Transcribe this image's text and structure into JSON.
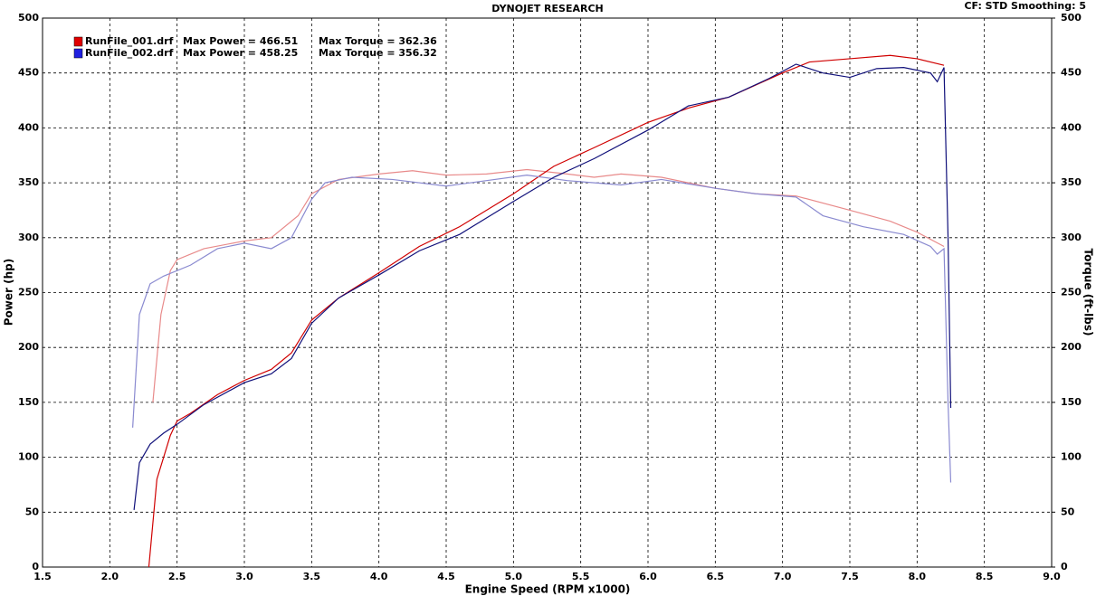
{
  "chart_data": {
    "type": "line",
    "title": "DYNOJET RESEARCH",
    "settings_text": "CF: STD  Smoothing: 5",
    "xlabel": "Engine Speed (RPM x1000)",
    "ylabel": "Power (hp)",
    "y2label": "Torque (ft-lbs)",
    "xlim": [
      1.5,
      9.0
    ],
    "xticks": [
      1.5,
      {
        "value": 2,
        "label": "2.0"
      },
      2.5,
      {
        "value": 3,
        "label": "3.0"
      },
      3.5,
      {
        "value": 4,
        "label": "4.0"
      },
      4.5,
      {
        "value": 5,
        "label": "5.0"
      },
      5.5,
      {
        "value": 6,
        "label": "6.0"
      },
      6.5,
      {
        "value": 7,
        "label": "7.0"
      },
      7.5,
      {
        "value": 8,
        "label": "8.0"
      },
      8.5,
      {
        "value": 9,
        "label": "9.0"
      }
    ],
    "ylim": [
      0,
      500
    ],
    "yticks": [
      0,
      50,
      100,
      150,
      200,
      250,
      300,
      350,
      400,
      450,
      500
    ],
    "y2lim": [
      0,
      500
    ],
    "y2ticks": [
      0,
      50,
      100,
      150,
      200,
      250,
      300,
      350,
      400,
      450,
      500
    ],
    "grid": true,
    "runs": [
      {
        "name": "RunFile_001.drf",
        "max_power": "Max Power = 466.51",
        "max_torque": "Max Torque = 362.36",
        "color": "#e00000",
        "power": {
          "color": "#d00000",
          "x": [
            2.29,
            2.35,
            2.45,
            2.5,
            2.6,
            2.8,
            3.0,
            3.2,
            3.35,
            3.5,
            3.7,
            4.0,
            4.3,
            4.6,
            5.0,
            5.3,
            5.6,
            6.0,
            6.3,
            6.6,
            7.0,
            7.2,
            7.5,
            7.8,
            8.0,
            8.2
          ],
          "values": [
            0,
            80,
            120,
            133,
            140,
            157,
            170,
            180,
            195,
            225,
            245,
            268,
            292,
            310,
            340,
            365,
            382,
            405,
            418,
            428,
            450,
            460,
            463,
            466,
            463,
            457
          ]
        },
        "torque": {
          "color": "#e88a8a",
          "axis": "y2",
          "x": [
            2.32,
            2.38,
            2.45,
            2.5,
            2.7,
            3.0,
            3.2,
            3.4,
            3.5,
            3.7,
            4.0,
            4.25,
            4.5,
            4.8,
            5.1,
            5.4,
            5.6,
            5.8,
            6.1,
            6.5,
            6.8,
            7.1,
            7.5,
            7.8,
            8.0,
            8.2
          ],
          "values": [
            150,
            230,
            270,
            280,
            290,
            297,
            300,
            320,
            340,
            353,
            358,
            361,
            357,
            358,
            362,
            358,
            355,
            358,
            355,
            345,
            340,
            338,
            325,
            315,
            305,
            292
          ]
        }
      },
      {
        "name": "RunFile_002.drf",
        "max_power": "Max Power = 458.25",
        "max_torque": "Max Torque = 356.32",
        "color": "#2020e0",
        "power": {
          "color": "#10107a",
          "x": [
            2.18,
            2.22,
            2.3,
            2.4,
            2.5,
            2.7,
            3.0,
            3.2,
            3.35,
            3.5,
            3.7,
            4.0,
            4.3,
            4.6,
            5.0,
            5.3,
            5.6,
            6.0,
            6.3,
            6.6,
            6.9,
            7.1,
            7.3,
            7.5,
            7.7,
            7.9,
            8.1,
            8.15,
            8.2,
            8.23,
            8.25
          ],
          "values": [
            52,
            95,
            112,
            122,
            130,
            148,
            168,
            176,
            190,
            222,
            245,
            266,
            288,
            303,
            333,
            355,
            372,
            398,
            420,
            428,
            445,
            458,
            450,
            446,
            454,
            455,
            450,
            442,
            455,
            300,
            145
          ]
        },
        "torque": {
          "color": "#8a8ad0",
          "axis": "y2",
          "x": [
            2.17,
            2.22,
            2.3,
            2.4,
            2.6,
            2.8,
            3.0,
            3.2,
            3.35,
            3.5,
            3.6,
            3.8,
            4.1,
            4.5,
            4.8,
            5.1,
            5.4,
            5.8,
            6.1,
            6.5,
            6.8,
            7.1,
            7.3,
            7.6,
            7.9,
            8.1,
            8.15,
            8.2,
            8.23,
            8.25
          ],
          "values": [
            127,
            230,
            258,
            265,
            275,
            290,
            295,
            290,
            300,
            335,
            350,
            355,
            353,
            347,
            352,
            357,
            352,
            348,
            353,
            345,
            340,
            337,
            320,
            310,
            303,
            292,
            285,
            290,
            150,
            77
          ]
        }
      }
    ]
  }
}
